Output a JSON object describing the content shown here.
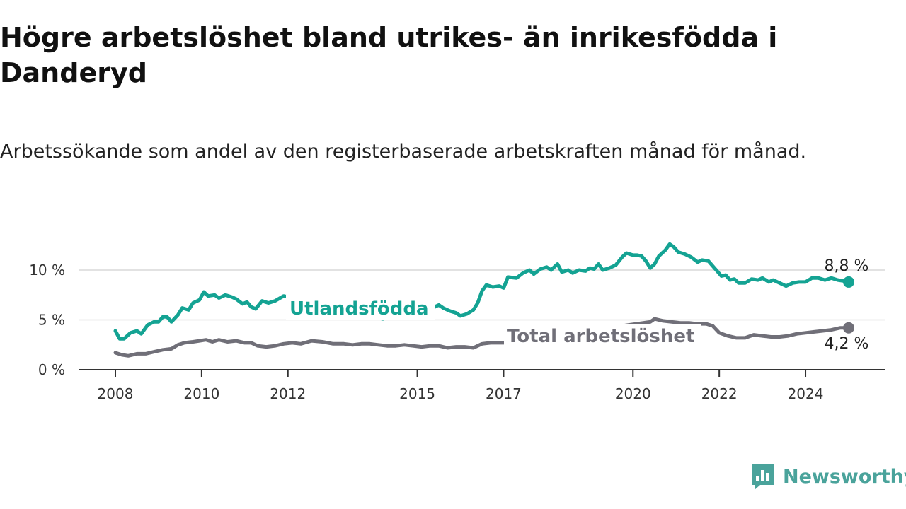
{
  "title": "Högre arbetslöshet bland utrikes- än inrikesfödda i Danderyd",
  "subtitle": "Arbetssökande som andel av den registerbaserade arbetskraften månad för månad.",
  "brand": "Newsworthy",
  "colors": {
    "utlandsfodda": "#14a393",
    "total": "#706f78",
    "brand": "#4aa39b"
  },
  "chart_data": {
    "type": "line",
    "ylim": [
      0,
      13
    ],
    "yticks": [
      {
        "value": 0,
        "label": "0 %"
      },
      {
        "value": 5,
        "label": "5 %"
      },
      {
        "value": 10,
        "label": "10 %"
      }
    ],
    "xticks": [
      {
        "value": 2008,
        "label": "2008"
      },
      {
        "value": 2010,
        "label": "2010"
      },
      {
        "value": 2012,
        "label": "2012"
      },
      {
        "value": 2015,
        "label": "2015"
      },
      {
        "value": 2017,
        "label": "2017"
      },
      {
        "value": 2020,
        "label": "2020"
      },
      {
        "value": 2022,
        "label": "2022"
      },
      {
        "value": 2024,
        "label": "2024"
      }
    ],
    "series": [
      {
        "name": "Utlandsfödda",
        "end_label": "8,8 %",
        "points": [
          [
            2008.0,
            3.9
          ],
          [
            2008.1,
            3.1
          ],
          [
            2008.2,
            3.1
          ],
          [
            2008.35,
            3.7
          ],
          [
            2008.5,
            3.9
          ],
          [
            2008.6,
            3.6
          ],
          [
            2008.75,
            4.5
          ],
          [
            2008.9,
            4.8
          ],
          [
            2009.0,
            4.8
          ],
          [
            2009.1,
            5.3
          ],
          [
            2009.2,
            5.3
          ],
          [
            2009.3,
            4.8
          ],
          [
            2009.45,
            5.5
          ],
          [
            2009.55,
            6.2
          ],
          [
            2009.7,
            6.0
          ],
          [
            2009.8,
            6.7
          ],
          [
            2009.95,
            7.0
          ],
          [
            2010.0,
            7.4
          ],
          [
            2010.05,
            7.8
          ],
          [
            2010.15,
            7.4
          ],
          [
            2010.3,
            7.5
          ],
          [
            2010.4,
            7.2
          ],
          [
            2010.55,
            7.5
          ],
          [
            2010.7,
            7.3
          ],
          [
            2010.8,
            7.1
          ],
          [
            2010.95,
            6.6
          ],
          [
            2011.05,
            6.8
          ],
          [
            2011.15,
            6.3
          ],
          [
            2011.25,
            6.1
          ],
          [
            2011.4,
            6.9
          ],
          [
            2011.55,
            6.7
          ],
          [
            2011.7,
            6.9
          ],
          [
            2011.9,
            7.4
          ],
          [
            2014.2,
            5.1
          ],
          [
            2014.4,
            5.4
          ],
          [
            2014.6,
            5.6
          ],
          [
            2014.8,
            5.9
          ],
          [
            2015.0,
            6.1
          ],
          [
            2015.2,
            6.3
          ],
          [
            2015.4,
            6.3
          ],
          [
            2015.5,
            6.5
          ],
          [
            2015.6,
            6.2
          ],
          [
            2015.75,
            5.9
          ],
          [
            2015.9,
            5.7
          ],
          [
            2016.0,
            5.4
          ],
          [
            2016.15,
            5.6
          ],
          [
            2016.3,
            6.0
          ],
          [
            2016.4,
            6.7
          ],
          [
            2016.5,
            7.9
          ],
          [
            2016.6,
            8.5
          ],
          [
            2016.75,
            8.3
          ],
          [
            2016.9,
            8.4
          ],
          [
            2017.0,
            8.2
          ],
          [
            2017.1,
            9.3
          ],
          [
            2017.3,
            9.2
          ],
          [
            2017.45,
            9.7
          ],
          [
            2017.6,
            10.0
          ],
          [
            2017.7,
            9.6
          ],
          [
            2017.85,
            10.1
          ],
          [
            2018.0,
            10.3
          ],
          [
            2018.1,
            10.0
          ],
          [
            2018.25,
            10.6
          ],
          [
            2018.35,
            9.8
          ],
          [
            2018.5,
            10.0
          ],
          [
            2018.6,
            9.7
          ],
          [
            2018.75,
            10.0
          ],
          [
            2018.9,
            9.9
          ],
          [
            2019.0,
            10.2
          ],
          [
            2019.1,
            10.1
          ],
          [
            2019.2,
            10.6
          ],
          [
            2019.3,
            10.0
          ],
          [
            2019.45,
            10.2
          ],
          [
            2019.6,
            10.5
          ],
          [
            2019.75,
            11.3
          ],
          [
            2019.85,
            11.7
          ],
          [
            2020.0,
            11.5
          ],
          [
            2020.1,
            11.5
          ],
          [
            2020.2,
            11.4
          ],
          [
            2020.3,
            10.9
          ],
          [
            2020.4,
            10.2
          ],
          [
            2020.5,
            10.6
          ],
          [
            2020.6,
            11.4
          ],
          [
            2020.75,
            12.0
          ],
          [
            2020.85,
            12.6
          ],
          [
            2020.95,
            12.3
          ],
          [
            2021.05,
            11.8
          ],
          [
            2021.2,
            11.6
          ],
          [
            2021.35,
            11.3
          ],
          [
            2021.5,
            10.8
          ],
          [
            2021.6,
            11.0
          ],
          [
            2021.75,
            10.9
          ],
          [
            2021.85,
            10.4
          ],
          [
            2021.95,
            9.9
          ],
          [
            2022.05,
            9.4
          ],
          [
            2022.15,
            9.5
          ],
          [
            2022.25,
            9.0
          ],
          [
            2022.35,
            9.1
          ],
          [
            2022.45,
            8.7
          ],
          [
            2022.6,
            8.7
          ],
          [
            2022.75,
            9.1
          ],
          [
            2022.9,
            9.0
          ],
          [
            2023.0,
            9.2
          ],
          [
            2023.15,
            8.8
          ],
          [
            2023.25,
            9.0
          ],
          [
            2023.4,
            8.7
          ],
          [
            2023.55,
            8.4
          ],
          [
            2023.7,
            8.7
          ],
          [
            2023.85,
            8.8
          ],
          [
            2024.0,
            8.8
          ],
          [
            2024.15,
            9.2
          ],
          [
            2024.3,
            9.2
          ],
          [
            2024.45,
            9.0
          ],
          [
            2024.6,
            9.2
          ],
          [
            2024.75,
            9.0
          ],
          [
            2024.9,
            8.9
          ],
          [
            2025.0,
            8.8
          ]
        ]
      },
      {
        "name": "Total arbetslöshet",
        "end_label": "4,2 %",
        "points": [
          [
            2008.0,
            1.7
          ],
          [
            2008.15,
            1.5
          ],
          [
            2008.3,
            1.4
          ],
          [
            2008.5,
            1.6
          ],
          [
            2008.7,
            1.6
          ],
          [
            2008.9,
            1.8
          ],
          [
            2009.1,
            2.0
          ],
          [
            2009.3,
            2.1
          ],
          [
            2009.45,
            2.5
          ],
          [
            2009.6,
            2.7
          ],
          [
            2009.8,
            2.8
          ],
          [
            2009.95,
            2.9
          ],
          [
            2010.1,
            3.0
          ],
          [
            2010.25,
            2.8
          ],
          [
            2010.4,
            3.0
          ],
          [
            2010.6,
            2.8
          ],
          [
            2010.8,
            2.9
          ],
          [
            2011.0,
            2.7
          ],
          [
            2011.15,
            2.7
          ],
          [
            2011.3,
            2.4
          ],
          [
            2011.5,
            2.3
          ],
          [
            2011.7,
            2.4
          ],
          [
            2011.9,
            2.6
          ],
          [
            2012.1,
            2.7
          ],
          [
            2012.3,
            2.6
          ],
          [
            2012.55,
            2.9
          ],
          [
            2012.8,
            2.8
          ],
          [
            2013.05,
            2.6
          ],
          [
            2013.3,
            2.6
          ],
          [
            2013.5,
            2.5
          ],
          [
            2013.7,
            2.6
          ],
          [
            2013.9,
            2.6
          ],
          [
            2014.1,
            2.5
          ],
          [
            2014.3,
            2.4
          ],
          [
            2014.5,
            2.4
          ],
          [
            2014.7,
            2.5
          ],
          [
            2014.9,
            2.4
          ],
          [
            2015.1,
            2.3
          ],
          [
            2015.3,
            2.4
          ],
          [
            2015.5,
            2.4
          ],
          [
            2015.7,
            2.2
          ],
          [
            2015.9,
            2.3
          ],
          [
            2016.1,
            2.3
          ],
          [
            2016.3,
            2.2
          ],
          [
            2016.5,
            2.6
          ],
          [
            2016.7,
            2.7
          ],
          [
            2017.0,
            2.7
          ],
          [
            2020.4,
            4.8
          ],
          [
            2020.5,
            5.1
          ],
          [
            2020.7,
            4.9
          ],
          [
            2020.9,
            4.8
          ],
          [
            2021.1,
            4.7
          ],
          [
            2021.3,
            4.7
          ],
          [
            2021.5,
            4.6
          ],
          [
            2021.7,
            4.6
          ],
          [
            2021.85,
            4.4
          ],
          [
            2022.0,
            3.7
          ],
          [
            2022.2,
            3.4
          ],
          [
            2022.4,
            3.2
          ],
          [
            2022.6,
            3.2
          ],
          [
            2022.8,
            3.5
          ],
          [
            2023.0,
            3.4
          ],
          [
            2023.2,
            3.3
          ],
          [
            2023.4,
            3.3
          ],
          [
            2023.6,
            3.4
          ],
          [
            2023.8,
            3.6
          ],
          [
            2024.0,
            3.7
          ],
          [
            2024.2,
            3.8
          ],
          [
            2024.4,
            3.9
          ],
          [
            2024.6,
            4.0
          ],
          [
            2024.8,
            4.2
          ],
          [
            2025.0,
            4.2
          ]
        ]
      }
    ]
  }
}
